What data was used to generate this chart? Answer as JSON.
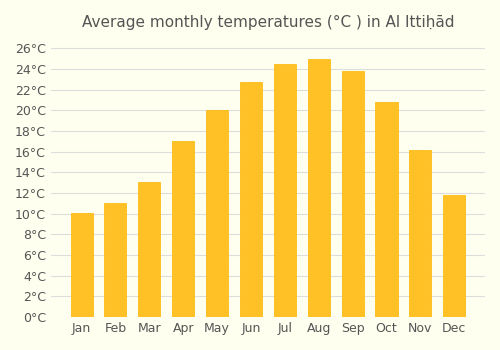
{
  "title": "Average monthly temperatures (°C ) in Al Ittiḥād",
  "months": [
    "Jan",
    "Feb",
    "Mar",
    "Apr",
    "May",
    "Jun",
    "Jul",
    "Aug",
    "Sep",
    "Oct",
    "Nov",
    "Dec"
  ],
  "values": [
    10.1,
    11.0,
    13.1,
    17.0,
    20.0,
    22.8,
    24.5,
    25.0,
    23.8,
    20.8,
    16.2,
    11.8
  ],
  "bar_color": "#FFC125",
  "bar_edge_color": "#FFB700",
  "background_color": "#FFFFF0",
  "grid_color": "#DDDDDD",
  "ylim": [
    0,
    27
  ],
  "yticks": [
    0,
    2,
    4,
    6,
    8,
    10,
    12,
    14,
    16,
    18,
    20,
    22,
    24,
    26
  ],
  "ytick_labels": [
    "0°C",
    "2°C",
    "4°C",
    "6°C",
    "8°C",
    "10°C",
    "12°C",
    "14°C",
    "16°C",
    "18°C",
    "20°C",
    "22°C",
    "24°C",
    "26°C"
  ],
  "title_fontsize": 11,
  "tick_fontsize": 9,
  "font_color": "#555555"
}
